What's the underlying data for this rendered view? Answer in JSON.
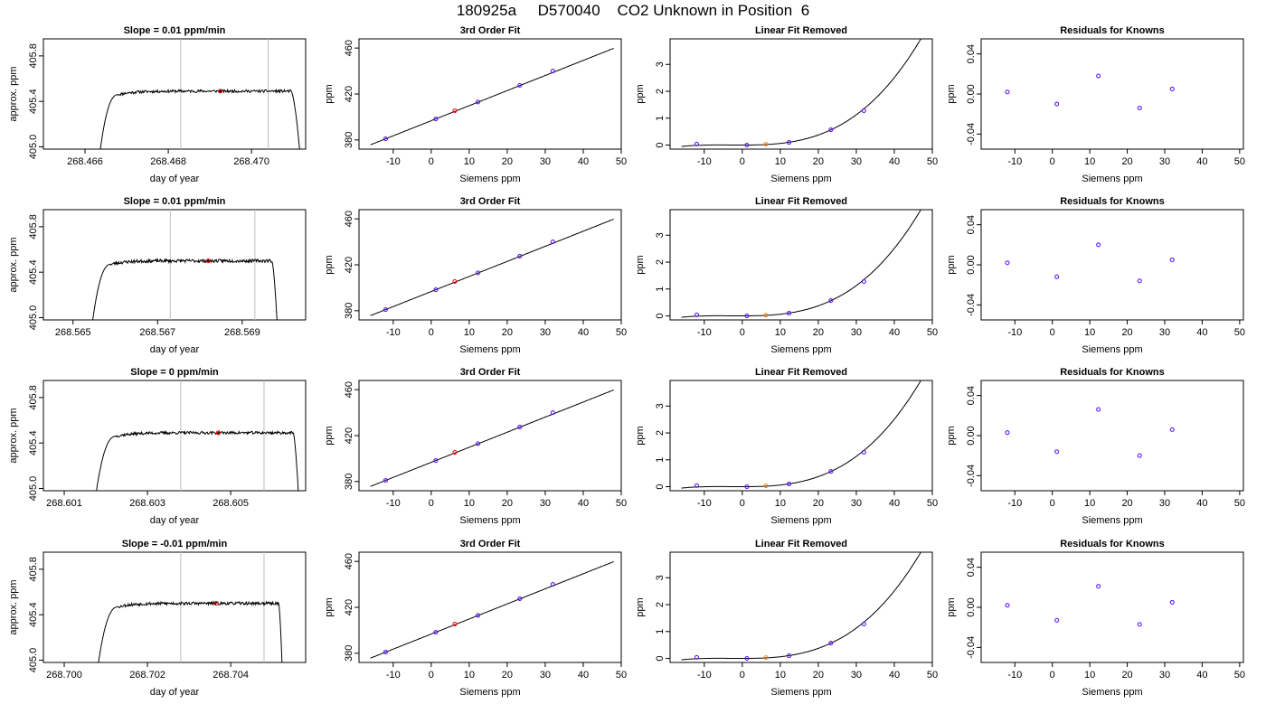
{
  "page": {
    "title": "180925a     D570040    CO2 Unknown in Position  6"
  },
  "chart_data": [
    {
      "type": "line",
      "panel": "timeseries",
      "title": "Slope =  0.01  ppm/min",
      "xlabel": "day of year",
      "ylabel": "approx. ppm",
      "xlim": [
        268.465,
        268.4713
      ],
      "ylim": [
        404.98,
        405.95
      ],
      "xticks": [
        268.466,
        268.468,
        268.47
      ],
      "xtick_labels": [
        "268.466",
        "268.468",
        "268.470"
      ],
      "yticks": [
        405.0,
        405.4,
        405.8
      ],
      "ytick_labels": [
        "405.0",
        "405.4",
        "405.8"
      ],
      "vlines": [
        268.4683,
        268.4704
      ],
      "trace": {
        "t_start": 268.4663,
        "t_rise_end": 268.4668,
        "t_fall_start": 268.47095,
        "t_end": 268.4712,
        "level": 405.49,
        "noise": 0.012,
        "seed": 11
      },
      "marker": {
        "x": 268.46925,
        "y": 405.49,
        "color": "#ff0000"
      },
      "grid": false
    },
    {
      "type": "scatter",
      "panel": "fit",
      "title": "3rd Order Fit",
      "xlabel": "Siemens ppm",
      "ylabel": "ppm",
      "xlim": [
        -19,
        50
      ],
      "ylim": [
        372,
        468
      ],
      "xticks": [
        -10,
        0,
        10,
        20,
        30,
        40,
        50
      ],
      "xtick_labels": [
        "-10",
        "0",
        "10",
        "20",
        "30",
        "40",
        "50"
      ],
      "yticks": [
        380,
        420,
        460
      ],
      "ytick_labels": [
        "380",
        "420",
        "460"
      ],
      "knowns_x": [
        -12.0,
        1.2,
        12.3,
        23.3,
        32.0
      ],
      "knowns_y": [
        381.0,
        398.3,
        413.0,
        427.5,
        440.0
      ],
      "unknown": {
        "x": 6.2,
        "y": 405.4
      },
      "curve": {
        "x0": -16,
        "x1": 48,
        "coeffs": [
          396.72,
          1.3128,
          0,
          0
        ]
      },
      "grid": false
    },
    {
      "type": "line",
      "panel": "linear_removed",
      "title": "Linear Fit Removed",
      "xlabel": "Siemens ppm",
      "ylabel": "ppm",
      "xlim": [
        -19,
        50
      ],
      "ylim": [
        -0.15,
        3.95
      ],
      "xticks": [
        -10,
        0,
        10,
        20,
        30,
        40,
        50
      ],
      "xtick_labels": [
        "-10",
        "0",
        "10",
        "20",
        "30",
        "40",
        "50"
      ],
      "yticks": [
        0,
        1,
        2,
        3
      ],
      "ytick_labels": [
        "0",
        "1",
        "2",
        "3"
      ],
      "knowns_x": [
        -12.0,
        1.2,
        12.3,
        23.3,
        32.0
      ],
      "knowns_y": [
        0.04,
        0.0,
        0.1,
        0.57,
        1.28
      ],
      "unknown": {
        "x": 6.2,
        "y": 0.03
      },
      "curve": {
        "x0": -16,
        "x1": 48,
        "coeffs": [
          0.0,
          0.0,
          0.000305,
          3.16e-05
        ]
      },
      "grid": false
    },
    {
      "type": "scatter",
      "panel": "residuals",
      "title": "Residuals for Knowns",
      "xlabel": "Siemens ppm",
      "ylabel": "ppm",
      "xlim": [
        -19,
        51
      ],
      "ylim": [
        -0.055,
        0.055
      ],
      "xticks": [
        -10,
        0,
        10,
        20,
        30,
        40,
        50
      ],
      "xtick_labels": [
        "-10",
        "0",
        "10",
        "20",
        "30",
        "40",
        "50"
      ],
      "yticks": [
        -0.04,
        0.0,
        0.04
      ],
      "ytick_labels": [
        "-0.04",
        "0.00",
        "0.04"
      ],
      "knowns_x": [
        -12.0,
        1.2,
        12.3,
        23.3,
        32.0
      ],
      "residuals": [
        0.002,
        -0.01,
        0.018,
        -0.014,
        0.005
      ],
      "grid": false
    },
    {
      "type": "line",
      "panel": "timeseries",
      "title": "Slope =  0.01  ppm/min",
      "xlabel": "day of year",
      "ylabel": "approx. ppm",
      "xlim": [
        268.5643,
        268.5705
      ],
      "ylim": [
        404.98,
        405.95
      ],
      "xticks": [
        268.565,
        268.567,
        268.569
      ],
      "xtick_labels": [
        "268.565",
        "268.567",
        "268.569"
      ],
      "yticks": [
        405.0,
        405.4,
        405.8
      ],
      "ytick_labels": [
        "405.0",
        "405.4",
        "405.8"
      ],
      "vlines": [
        268.5673,
        268.5693
      ],
      "trace": {
        "t_start": 268.5654,
        "t_rise_end": 268.5659,
        "t_fall_start": 268.5697,
        "t_end": 268.56985,
        "level": 405.5,
        "noise": 0.014,
        "seed": 23
      },
      "marker": {
        "x": 268.5682,
        "y": 405.5,
        "color": "#ff0000"
      },
      "grid": false
    },
    {
      "type": "scatter",
      "panel": "fit",
      "title": "3rd Order Fit",
      "xlabel": "Siemens ppm",
      "ylabel": "ppm",
      "xlim": [
        -19,
        50
      ],
      "ylim": [
        372,
        468
      ],
      "xticks": [
        -10,
        0,
        10,
        20,
        30,
        40,
        50
      ],
      "xtick_labels": [
        "-10",
        "0",
        "10",
        "20",
        "30",
        "40",
        "50"
      ],
      "yticks": [
        380,
        420,
        460
      ],
      "ytick_labels": [
        "380",
        "420",
        "460"
      ],
      "knowns_x": [
        -12.0,
        1.2,
        12.3,
        23.3,
        32.0
      ],
      "knowns_y": [
        381.0,
        398.3,
        413.0,
        427.5,
        440.0
      ],
      "unknown": {
        "x": 6.2,
        "y": 405.4
      },
      "curve": {
        "x0": -16,
        "x1": 48,
        "coeffs": [
          396.72,
          1.3128,
          0,
          0
        ]
      },
      "grid": false
    },
    {
      "type": "line",
      "panel": "linear_removed",
      "title": "Linear Fit Removed",
      "xlabel": "Siemens ppm",
      "ylabel": "ppm",
      "xlim": [
        -19,
        50
      ],
      "ylim": [
        -0.15,
        3.95
      ],
      "xticks": [
        -10,
        0,
        10,
        20,
        30,
        40,
        50
      ],
      "xtick_labels": [
        "-10",
        "0",
        "10",
        "20",
        "30",
        "40",
        "50"
      ],
      "yticks": [
        0,
        1,
        2,
        3
      ],
      "ytick_labels": [
        "0",
        "1",
        "2",
        "3"
      ],
      "knowns_x": [
        -12.0,
        1.2,
        12.3,
        23.3,
        32.0
      ],
      "knowns_y": [
        0.04,
        0.0,
        0.1,
        0.57,
        1.28
      ],
      "unknown": {
        "x": 6.2,
        "y": 0.03
      },
      "curve": {
        "x0": -16,
        "x1": 48,
        "coeffs": [
          0.0,
          0.0,
          0.000305,
          3.16e-05
        ]
      },
      "grid": false
    },
    {
      "type": "scatter",
      "panel": "residuals",
      "title": "Residuals for Knowns",
      "xlabel": "Siemens ppm",
      "ylabel": "ppm",
      "xlim": [
        -19,
        51
      ],
      "ylim": [
        -0.055,
        0.055
      ],
      "xticks": [
        -10,
        0,
        10,
        20,
        30,
        40,
        50
      ],
      "xtick_labels": [
        "-10",
        "0",
        "10",
        "20",
        "30",
        "40",
        "50"
      ],
      "yticks": [
        -0.04,
        0.0,
        0.04
      ],
      "ytick_labels": [
        "-0.04",
        "0.00",
        "0.04"
      ],
      "knowns_x": [
        -12.0,
        1.2,
        12.3,
        23.3,
        32.0
      ],
      "residuals": [
        0.002,
        -0.012,
        0.02,
        -0.016,
        0.005
      ],
      "grid": false
    },
    {
      "type": "line",
      "panel": "timeseries",
      "title": "Slope =  0  ppm/min",
      "xlabel": "day of year",
      "ylabel": "approx. ppm",
      "xlim": [
        268.6005,
        268.6068
      ],
      "ylim": [
        404.98,
        405.95
      ],
      "xticks": [
        268.601,
        268.603,
        268.605
      ],
      "xtick_labels": [
        "268.601",
        "268.603",
        "268.605"
      ],
      "yticks": [
        405.0,
        405.4,
        405.8
      ],
      "ytick_labels": [
        "405.0",
        "405.4",
        "405.8"
      ],
      "vlines": [
        268.6038,
        268.6058
      ],
      "trace": {
        "t_start": 268.6017,
        "t_rise_end": 268.60225,
        "t_fall_start": 268.6065,
        "t_end": 268.60665,
        "level": 405.49,
        "noise": 0.012,
        "seed": 37
      },
      "marker": {
        "x": 268.6047,
        "y": 405.49,
        "color": "#ff0000"
      },
      "grid": false
    },
    {
      "type": "scatter",
      "panel": "fit",
      "title": "3rd Order Fit",
      "xlabel": "Siemens ppm",
      "ylabel": "ppm",
      "xlim": [
        -19,
        50
      ],
      "ylim": [
        372,
        468
      ],
      "xticks": [
        -10,
        0,
        10,
        20,
        30,
        40,
        50
      ],
      "xtick_labels": [
        "-10",
        "0",
        "10",
        "20",
        "30",
        "40",
        "50"
      ],
      "yticks": [
        380,
        420,
        460
      ],
      "ytick_labels": [
        "380",
        "420",
        "460"
      ],
      "knowns_x": [
        -12.0,
        1.2,
        12.3,
        23.3,
        32.0
      ],
      "knowns_y": [
        381.0,
        398.3,
        413.0,
        427.5,
        440.0
      ],
      "unknown": {
        "x": 6.2,
        "y": 405.4
      },
      "curve": {
        "x0": -16,
        "x1": 48,
        "coeffs": [
          396.72,
          1.3128,
          0,
          0
        ]
      },
      "grid": false
    },
    {
      "type": "line",
      "panel": "linear_removed",
      "title": "Linear Fit Removed",
      "xlabel": "Siemens ppm",
      "ylabel": "ppm",
      "xlim": [
        -19,
        50
      ],
      "ylim": [
        -0.15,
        3.95
      ],
      "xticks": [
        -10,
        0,
        10,
        20,
        30,
        40,
        50
      ],
      "xtick_labels": [
        "-10",
        "0",
        "10",
        "20",
        "30",
        "40",
        "50"
      ],
      "yticks": [
        0,
        1,
        2,
        3
      ],
      "ytick_labels": [
        "0",
        "1",
        "2",
        "3"
      ],
      "knowns_x": [
        -12.0,
        1.2,
        12.3,
        23.3,
        32.0
      ],
      "knowns_y": [
        0.04,
        0.0,
        0.1,
        0.57,
        1.28
      ],
      "unknown": {
        "x": 6.2,
        "y": 0.03
      },
      "curve": {
        "x0": -16,
        "x1": 48,
        "coeffs": [
          0.0,
          0.0,
          0.000305,
          3.16e-05
        ]
      },
      "grid": false
    },
    {
      "type": "scatter",
      "panel": "residuals",
      "title": "Residuals for Knowns",
      "xlabel": "Siemens ppm",
      "ylabel": "ppm",
      "xlim": [
        -19,
        51
      ],
      "ylim": [
        -0.055,
        0.055
      ],
      "xticks": [
        -10,
        0,
        10,
        20,
        30,
        40,
        50
      ],
      "xtick_labels": [
        "-10",
        "0",
        "10",
        "20",
        "30",
        "40",
        "50"
      ],
      "yticks": [
        -0.04,
        0.0,
        0.04
      ],
      "ytick_labels": [
        "-0.04",
        "0.00",
        "0.04"
      ],
      "knowns_x": [
        -12.0,
        1.2,
        12.3,
        23.3,
        32.0
      ],
      "residuals": [
        0.003,
        -0.016,
        0.026,
        -0.02,
        0.006
      ],
      "grid": false
    },
    {
      "type": "line",
      "panel": "timeseries",
      "title": "Slope =  -0.01  ppm/min",
      "xlabel": "day of year",
      "ylabel": "approx. ppm",
      "xlim": [
        268.6995,
        268.7058
      ],
      "ylim": [
        404.98,
        405.95
      ],
      "xticks": [
        268.7,
        268.702,
        268.704
      ],
      "xtick_labels": [
        "268.700",
        "268.702",
        "268.704"
      ],
      "yticks": [
        405.0,
        405.4,
        405.8
      ],
      "ytick_labels": [
        "405.0",
        "405.4",
        "405.8"
      ],
      "vlines": [
        268.7028,
        268.7048
      ],
      "trace": {
        "t_start": 268.70075,
        "t_rise_end": 268.7013,
        "t_fall_start": 268.70515,
        "t_end": 268.70525,
        "level": 405.5,
        "noise": 0.013,
        "seed": 53
      },
      "marker": {
        "x": 268.70365,
        "y": 405.5,
        "color": "#ff0000"
      },
      "grid": false
    },
    {
      "type": "scatter",
      "panel": "fit",
      "title": "3rd Order Fit",
      "xlabel": "Siemens ppm",
      "ylabel": "ppm",
      "xlim": [
        -19,
        50
      ],
      "ylim": [
        372,
        468
      ],
      "xticks": [
        -10,
        0,
        10,
        20,
        30,
        40,
        50
      ],
      "xtick_labels": [
        "-10",
        "0",
        "10",
        "20",
        "30",
        "40",
        "50"
      ],
      "yticks": [
        380,
        420,
        460
      ],
      "ytick_labels": [
        "380",
        "420",
        "460"
      ],
      "knowns_x": [
        -12.0,
        1.2,
        12.3,
        23.3,
        32.0
      ],
      "knowns_y": [
        381.0,
        398.3,
        413.0,
        427.5,
        440.0
      ],
      "unknown": {
        "x": 6.2,
        "y": 405.4
      },
      "curve": {
        "x0": -16,
        "x1": 48,
        "coeffs": [
          396.72,
          1.3128,
          0,
          0
        ]
      },
      "grid": false
    },
    {
      "type": "line",
      "panel": "linear_removed",
      "title": "Linear Fit Removed",
      "xlabel": "Siemens ppm",
      "ylabel": "ppm",
      "xlim": [
        -19,
        50
      ],
      "ylim": [
        -0.15,
        3.95
      ],
      "xticks": [
        -10,
        0,
        10,
        20,
        30,
        40,
        50
      ],
      "xtick_labels": [
        "-10",
        "0",
        "10",
        "20",
        "30",
        "40",
        "50"
      ],
      "yticks": [
        0,
        1,
        2,
        3
      ],
      "ytick_labels": [
        "0",
        "1",
        "2",
        "3"
      ],
      "knowns_x": [
        -12.0,
        1.2,
        12.3,
        23.3,
        32.0
      ],
      "knowns_y": [
        0.04,
        0.0,
        0.1,
        0.57,
        1.28
      ],
      "unknown": {
        "x": 6.2,
        "y": 0.03
      },
      "curve": {
        "x0": -16,
        "x1": 48,
        "coeffs": [
          0.0,
          0.0,
          0.000305,
          3.16e-05
        ]
      },
      "grid": false
    },
    {
      "type": "scatter",
      "panel": "residuals",
      "title": "Residuals for Knowns",
      "xlabel": "Siemens ppm",
      "ylabel": "ppm",
      "xlim": [
        -19,
        51
      ],
      "ylim": [
        -0.055,
        0.055
      ],
      "xticks": [
        -10,
        0,
        10,
        20,
        30,
        40,
        50
      ],
      "xtick_labels": [
        "-10",
        "0",
        "10",
        "20",
        "30",
        "40",
        "50"
      ],
      "yticks": [
        -0.04,
        0.0,
        0.04
      ],
      "ytick_labels": [
        "-0.04",
        "0.00",
        "0.04"
      ],
      "knowns_x": [
        -12.0,
        1.2,
        12.3,
        23.3,
        32.0
      ],
      "residuals": [
        0.002,
        -0.013,
        0.021,
        -0.017,
        0.005
      ],
      "grid": false
    }
  ],
  "colors": {
    "axis": "#000000",
    "trace": "#000000",
    "vline": "#bebebe",
    "known_point": "#0000ff",
    "known_point_alt": "#a020f0",
    "unknown_point_fit": "#ff0000",
    "unknown_point_removed": "#ff7f00"
  }
}
